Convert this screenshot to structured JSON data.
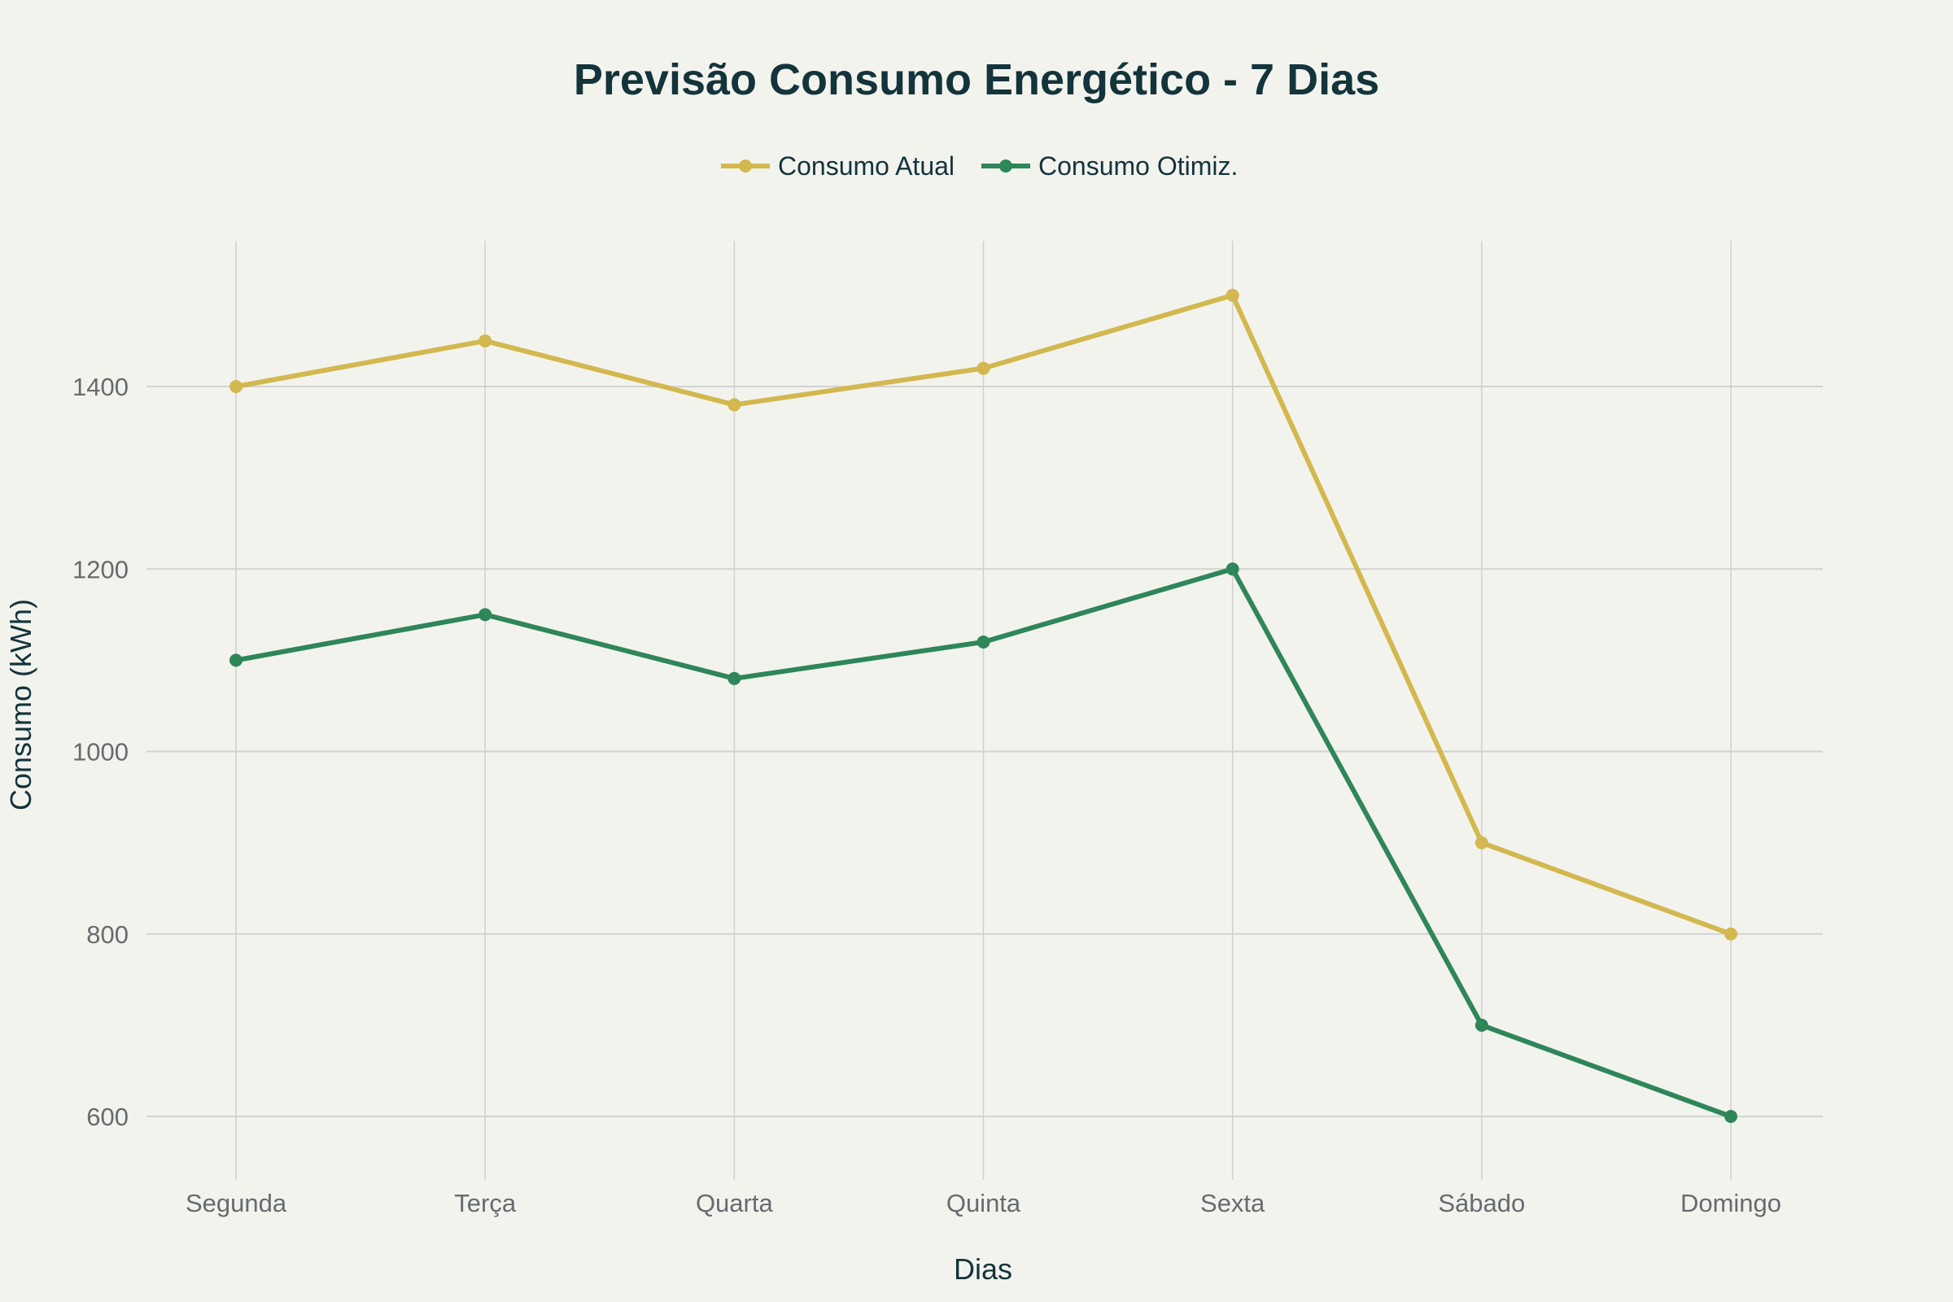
{
  "chart_data": {
    "type": "line",
    "title": "Previsão Consumo Energético - 7 Dias",
    "xlabel": "Dias",
    "ylabel": "Consumo (kWh)",
    "categories": [
      "Segunda",
      "Terça",
      "Quarta",
      "Quinta",
      "Sexta",
      "Sábado",
      "Domingo"
    ],
    "ylim": [
      540,
      1560
    ],
    "yticks": [
      600,
      800,
      1000,
      1200,
      1400
    ],
    "grid": true,
    "legend_position": "top-center",
    "series": [
      {
        "name": "Consumo Atual",
        "color": "#d2b84f",
        "values": [
          1400,
          1450,
          1380,
          1420,
          1500,
          900,
          800
        ]
      },
      {
        "name": "Consumo Otimiz.",
        "color": "#2e8659",
        "values": [
          1100,
          1150,
          1080,
          1120,
          1200,
          700,
          600
        ]
      }
    ]
  }
}
